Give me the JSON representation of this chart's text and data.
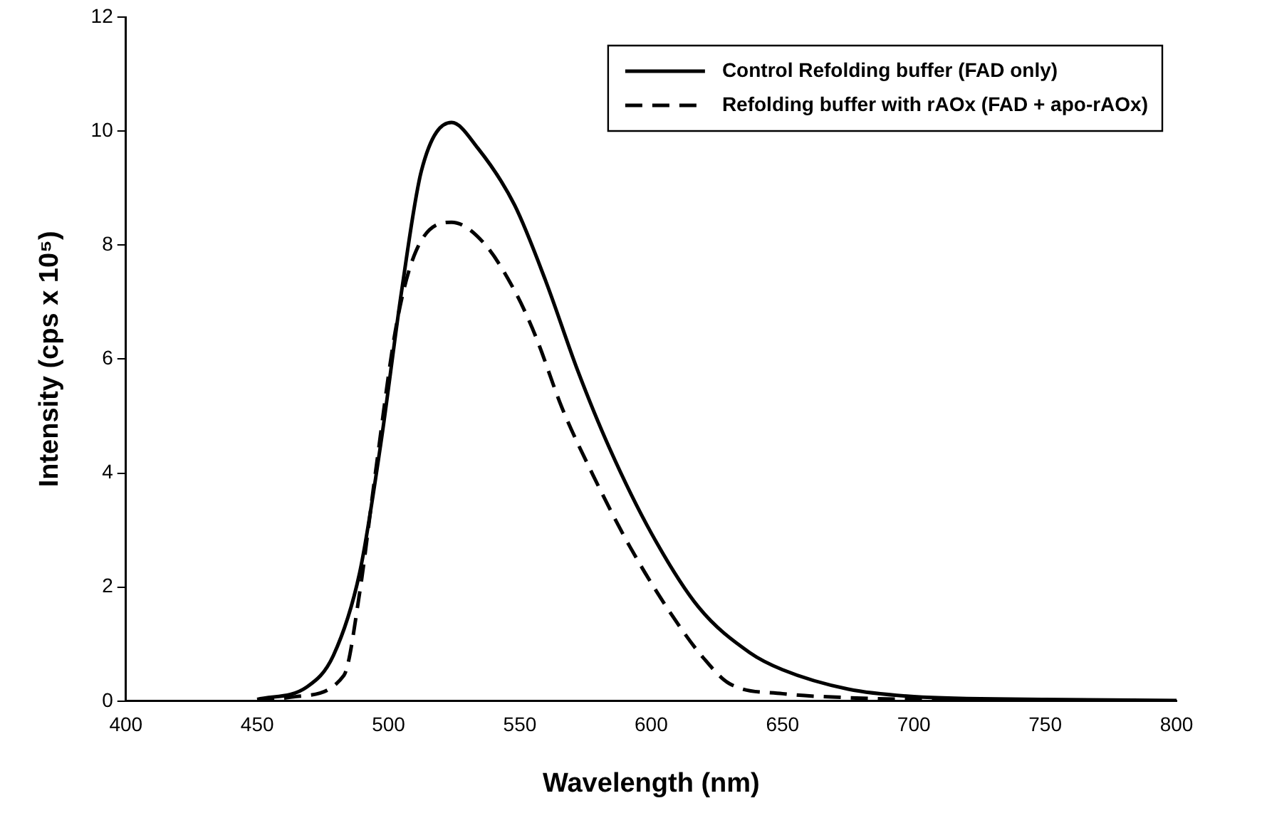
{
  "chart_data": {
    "type": "line",
    "xlabel": "Wavelength (nm)",
    "ylabel": "Intensity (cps x 10⁵)",
    "xlim": [
      400,
      800
    ],
    "xticks": [
      400,
      450,
      500,
      550,
      600,
      650,
      700,
      750,
      800
    ],
    "ylim": [
      0,
      12
    ],
    "yticks": [
      0,
      2,
      4,
      6,
      8,
      10,
      12
    ],
    "grid": false,
    "legend": "top right",
    "marker": "none",
    "series": [
      {
        "name": "Control Refolding buffer (FAD only)",
        "color": "#000000",
        "line_style": "solid",
        "x": [
          450,
          469,
          479,
          489,
          497,
          505,
          512.5,
          524,
          534,
          548,
          560,
          572,
          584,
          600,
          618,
          637.5,
          650,
          675,
          700,
          750,
          800
        ],
        "values": [
          0.03,
          0.25,
          0.8,
          2.25,
          4.5,
          7.2,
          9.3,
          10.15,
          9.7,
          8.7,
          7.35,
          5.8,
          4.45,
          2.95,
          1.65,
          0.85,
          0.55,
          0.21,
          0.08,
          0.03,
          0.01
        ]
      },
      {
        "name": "Refolding buffer with rAOx (FAD + apo-rAOx)",
        "color": "#000000",
        "line_style": "dashed",
        "x": [
          450,
          465,
          483,
          489,
          495,
          503,
          510.5,
          524,
          536,
          548,
          556,
          566,
          578,
          592,
          608,
          620,
          630,
          650,
          675,
          700,
          750,
          800
        ],
        "values": [
          0.01,
          0.08,
          0.45,
          1.9,
          4.0,
          6.6,
          7.9,
          8.4,
          8.05,
          7.2,
          6.4,
          5.15,
          3.95,
          2.7,
          1.5,
          0.75,
          0.3,
          0.13,
          0.06,
          0.03,
          0.01,
          0
        ]
      }
    ]
  }
}
